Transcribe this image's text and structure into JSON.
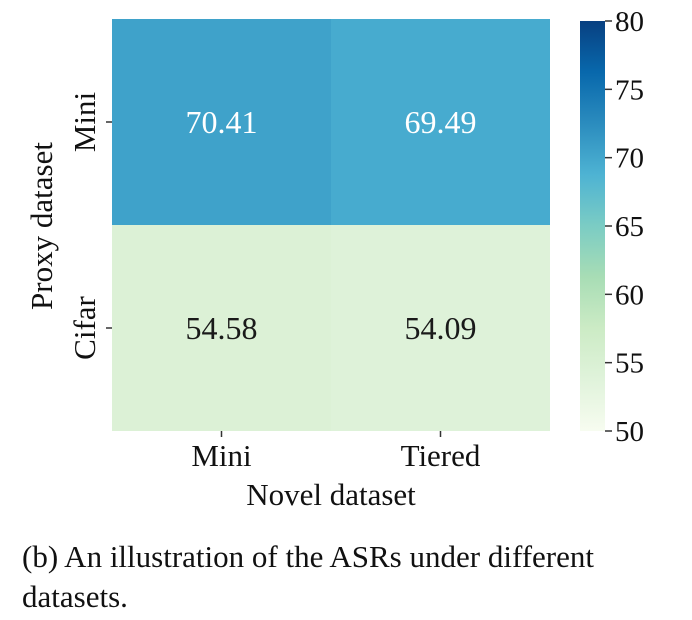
{
  "chart_data": {
    "type": "heatmap",
    "xlabel": "Novel dataset",
    "ylabel": "Proxy dataset",
    "x_categories": [
      "Mini",
      "Tiered"
    ],
    "y_categories": [
      "Mini",
      "Cifar"
    ],
    "values": [
      [
        70.41,
        69.49
      ],
      [
        54.58,
        54.09
      ]
    ],
    "colorbar": {
      "range": [
        50,
        80
      ],
      "ticks": [
        50,
        55,
        60,
        65,
        70,
        75,
        80
      ],
      "colormap": "GnBu",
      "colors": [
        "#f7fcf0",
        "#e0f3db",
        "#ccebc5",
        "#a8ddb5",
        "#7bccc4",
        "#4eb3d3",
        "#2b8cbe",
        "#0868ac",
        "#084081"
      ]
    }
  },
  "caption": "(b) An illustration of the ASRs under different datasets."
}
